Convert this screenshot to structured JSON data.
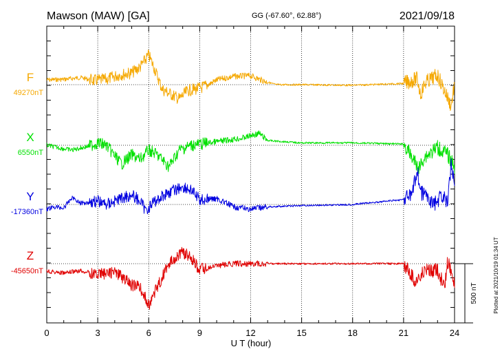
{
  "header": {
    "station": "Mawson (MAW)  [GA]",
    "coords": "GG (-67.60°,  62.88°)",
    "date": "2021/09/18"
  },
  "side_note": "Plotted at 2021/10/19 01:34 UT",
  "scale_label": "500 nT",
  "chart_data": {
    "type": "line",
    "xlabel": "U T (hour)",
    "ylabel": "",
    "xlim": [
      0,
      24
    ],
    "x_ticks": [
      "0",
      "3",
      "6",
      "9",
      "12",
      "15",
      "18",
      "21",
      "24"
    ],
    "grid": "vertical dotted every 3 h",
    "scale_bar_nT": 500,
    "series": [
      {
        "name": "F",
        "baseline_label": "49270nT",
        "color": "#f5a800",
        "x": [
          0,
          1,
          2,
          2.8,
          3.5,
          4.2,
          5,
          5.5,
          6,
          6.3,
          6.8,
          7.3,
          7.8,
          8.3,
          9,
          9.5,
          10,
          11,
          12,
          12.8,
          13.5,
          15,
          18,
          21,
          21.8,
          22,
          22.3,
          23,
          23.5,
          23.8,
          24
        ],
        "y": [
          40,
          45,
          60,
          35,
          45,
          80,
          100,
          150,
          250,
          150,
          -40,
          -80,
          -120,
          -50,
          -30,
          0,
          40,
          70,
          75,
          30,
          0,
          0,
          -5,
          10,
          50,
          -80,
          20,
          80,
          -80,
          -180,
          10
        ]
      },
      {
        "name": "X",
        "baseline_label": "6550nT",
        "color": "#00e000",
        "x": [
          0,
          1,
          1.5,
          2.4,
          3,
          3.5,
          4.4,
          5,
          5.5,
          6,
          6.5,
          7.2,
          7.8,
          8.5,
          9.5,
          10.5,
          11.5,
          12.5,
          13,
          15,
          18,
          21,
          21.7,
          21.9,
          22.2,
          23,
          23.6,
          24
        ],
        "y": [
          0,
          -30,
          -40,
          -10,
          20,
          0,
          -160,
          -80,
          -120,
          -40,
          -80,
          -180,
          -40,
          0,
          20,
          40,
          60,
          100,
          40,
          20,
          20,
          10,
          -150,
          -200,
          -100,
          -20,
          -80,
          -180
        ]
      },
      {
        "name": "Y",
        "baseline_label": "-17360nT",
        "color": "#0000e0",
        "x": [
          0,
          0.5,
          1,
          1.5,
          2,
          3,
          3.5,
          4.5,
          5,
          5.5,
          5.8,
          6.3,
          7,
          8,
          8.5,
          9,
          10,
          11,
          12,
          13,
          15,
          18,
          20.9,
          21.5,
          21.8,
          22,
          22.3,
          22.8,
          23.3,
          23.6,
          23.8,
          24
        ],
        "y": [
          -40,
          -20,
          -30,
          60,
          10,
          30,
          0,
          60,
          80,
          30,
          -50,
          20,
          90,
          150,
          120,
          40,
          50,
          -20,
          -40,
          -20,
          -10,
          0,
          40,
          80,
          300,
          100,
          80,
          0,
          80,
          0,
          350,
          200
        ]
      },
      {
        "name": "Z",
        "baseline_label": "-45650nT",
        "color": "#e00000",
        "x": [
          0,
          1,
          2,
          3,
          4,
          4.5,
          5,
          5.5,
          6,
          6.5,
          7,
          7.5,
          8,
          8.5,
          9,
          10,
          11,
          12,
          15,
          18,
          21,
          21.7,
          22,
          22.3,
          23,
          23.4,
          23.6,
          23.8,
          24
        ],
        "y": [
          -60,
          -80,
          -60,
          -90,
          -70,
          -120,
          -180,
          -200,
          -350,
          -200,
          -50,
          50,
          100,
          50,
          -50,
          -20,
          0,
          0,
          0,
          0,
          0,
          -150,
          -100,
          -60,
          -60,
          -200,
          20,
          -60,
          -180
        ]
      }
    ]
  }
}
